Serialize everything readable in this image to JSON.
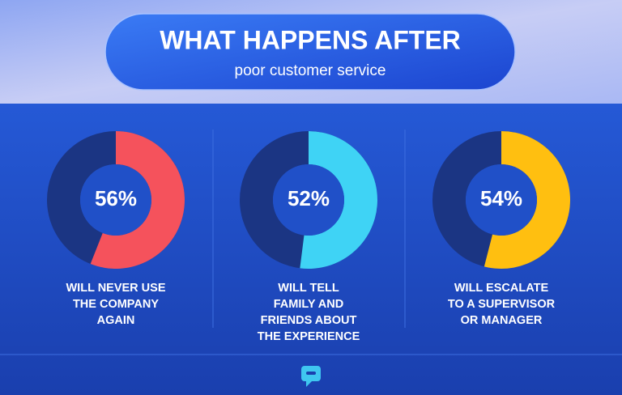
{
  "header": {
    "title": "WHAT HAPPENS AFTER",
    "subtitle": "poor customer service"
  },
  "chart_data": [
    {
      "type": "donut",
      "values": [
        56
      ],
      "value_labels": [
        "56%"
      ],
      "color": "#f5525c",
      "label": "WILL NEVER USE\nTHE COMPANY\nAGAIN"
    },
    {
      "type": "donut",
      "values": [
        52
      ],
      "value_labels": [
        "52%"
      ],
      "color": "#3fd3f5",
      "label": "WILL TELL\nFAMILY AND\nFRIENDS ABOUT\nTHE EXPERIENCE"
    },
    {
      "type": "donut",
      "values": [
        54
      ],
      "value_labels": [
        "54%"
      ],
      "color": "#ffbf10",
      "label": "WILL ESCALATE\nTO A SUPERVISOR\nOR MANAGER"
    }
  ]
}
